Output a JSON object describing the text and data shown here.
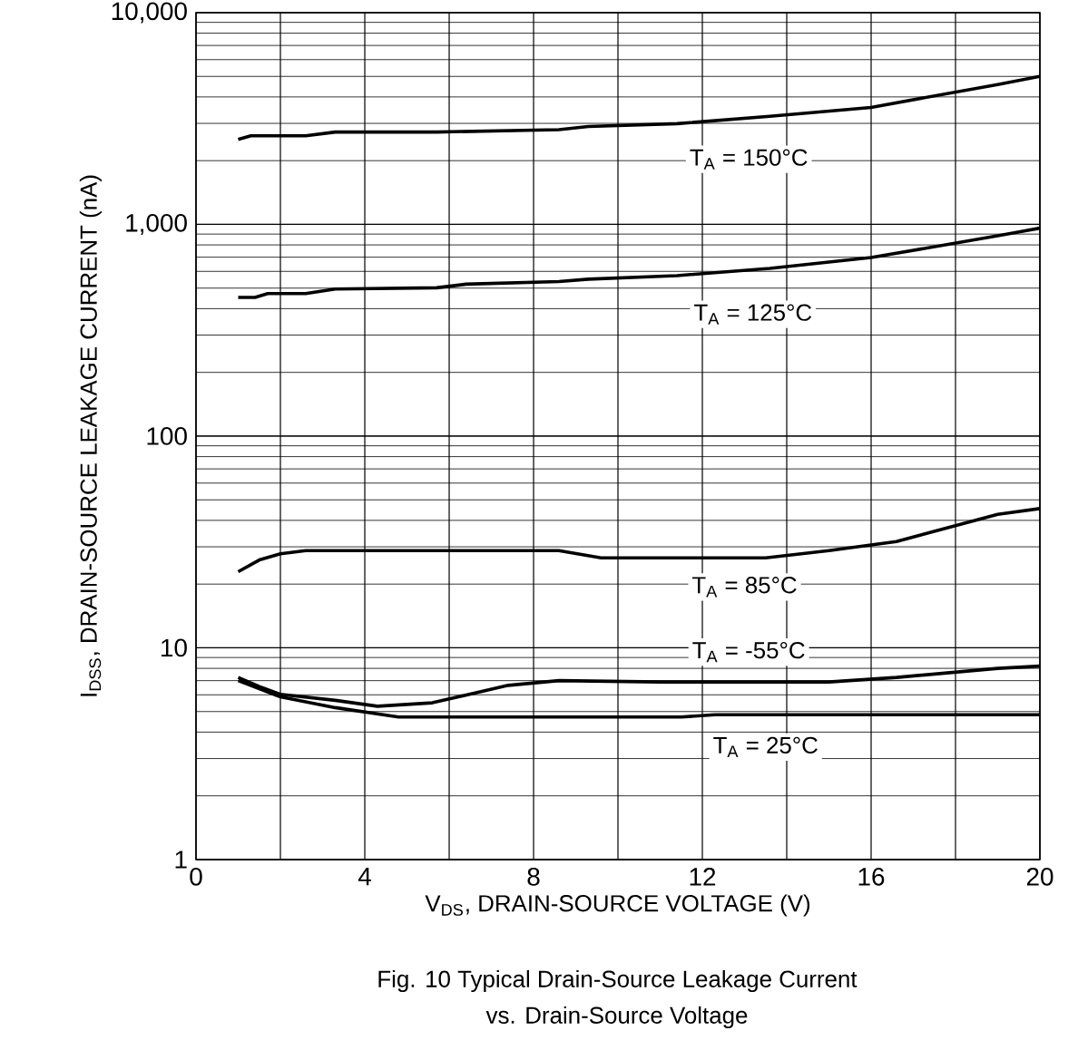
{
  "chart_data": {
    "type": "line",
    "xlabel": "V$_{DS}$, DRAIN-SOURCE VOLTAGE (V)",
    "ylabel": "I$_{DSS}$, DRAIN-SOURCE LEAKAGE CURRENT (nA)",
    "annotations": [
      "Fig. 10 Typical Drain-Source Leakage Current",
      "vs. Drain-Source Voltage"
    ],
    "log": "y",
    "grid": true,
    "marker": "none",
    "line_style": "solid",
    "xlim": [
      0,
      20
    ],
    "ylim": [
      1,
      10000
    ],
    "xticks": [
      0,
      {
        "value": 2,
        "label": null
      },
      4,
      {
        "value": 6,
        "label": null
      },
      8,
      {
        "value": 10,
        "label": null
      },
      12,
      {
        "value": 14,
        "label": null
      },
      16,
      {
        "value": 18,
        "label": null
      },
      20
    ],
    "yticks": [
      1,
      10,
      100,
      {
        "value": 1000,
        "label": "1,000"
      },
      {
        "value": 10000,
        "label": "10,000"
      }
    ],
    "series": [
      {
        "name": "T$_{A}$ = 150°C",
        "color": "#000000",
        "x": [
          1.0,
          1.3,
          2.6,
          3.3,
          5.7,
          8.6,
          9.3,
          11.4,
          13.6,
          16.0,
          19.0,
          20
        ],
        "values": [
          2520,
          2620,
          2620,
          2730,
          2730,
          2800,
          2900,
          2990,
          3240,
          3570,
          4580,
          5000
        ]
      },
      {
        "name": "T$_{A}$ = 125°C",
        "color": "#000000",
        "x": [
          1.0,
          1.4,
          1.7,
          2.6,
          3.3,
          5.7,
          6.4,
          8.6,
          9.3,
          11.4,
          13.6,
          16.0,
          19.0,
          20
        ],
        "values": [
          452,
          452,
          471,
          471,
          495,
          502,
          522,
          537,
          551,
          573,
          620,
          697,
          883,
          960
        ]
      },
      {
        "name": "T$_{A}$ = 85°C",
        "color": "#000000",
        "x": [
          1.0,
          1.5,
          2.0,
          2.6,
          8.6,
          9.6,
          13.5,
          15.0,
          16.6,
          19.0,
          20
        ],
        "values": [
          22.9,
          26,
          27.8,
          28.8,
          28.8,
          26.6,
          26.6,
          28.8,
          31.8,
          42.7,
          45.5
        ]
      },
      {
        "name": "T$_{A}$ = -55°C",
        "color": "#000000",
        "x": [
          1.0,
          1.5,
          2.0,
          3.3,
          4.3,
          5.6,
          7.4,
          8.6,
          11.0,
          15.0,
          16.6,
          19.0,
          20
        ],
        "values": [
          7.25,
          6.57,
          6.03,
          5.65,
          5.3,
          5.5,
          6.65,
          7.0,
          6.9,
          6.9,
          7.25,
          8.0,
          8.2
        ]
      },
      {
        "name": "T$_{A}$ = 25°C",
        "color": "#000000",
        "x": [
          1.0,
          2.0,
          3.3,
          4.8,
          11.5,
          12.3,
          20
        ],
        "values": [
          7.0,
          5.87,
          5.22,
          4.71,
          4.71,
          4.83,
          4.83
        ]
      }
    ]
  }
}
